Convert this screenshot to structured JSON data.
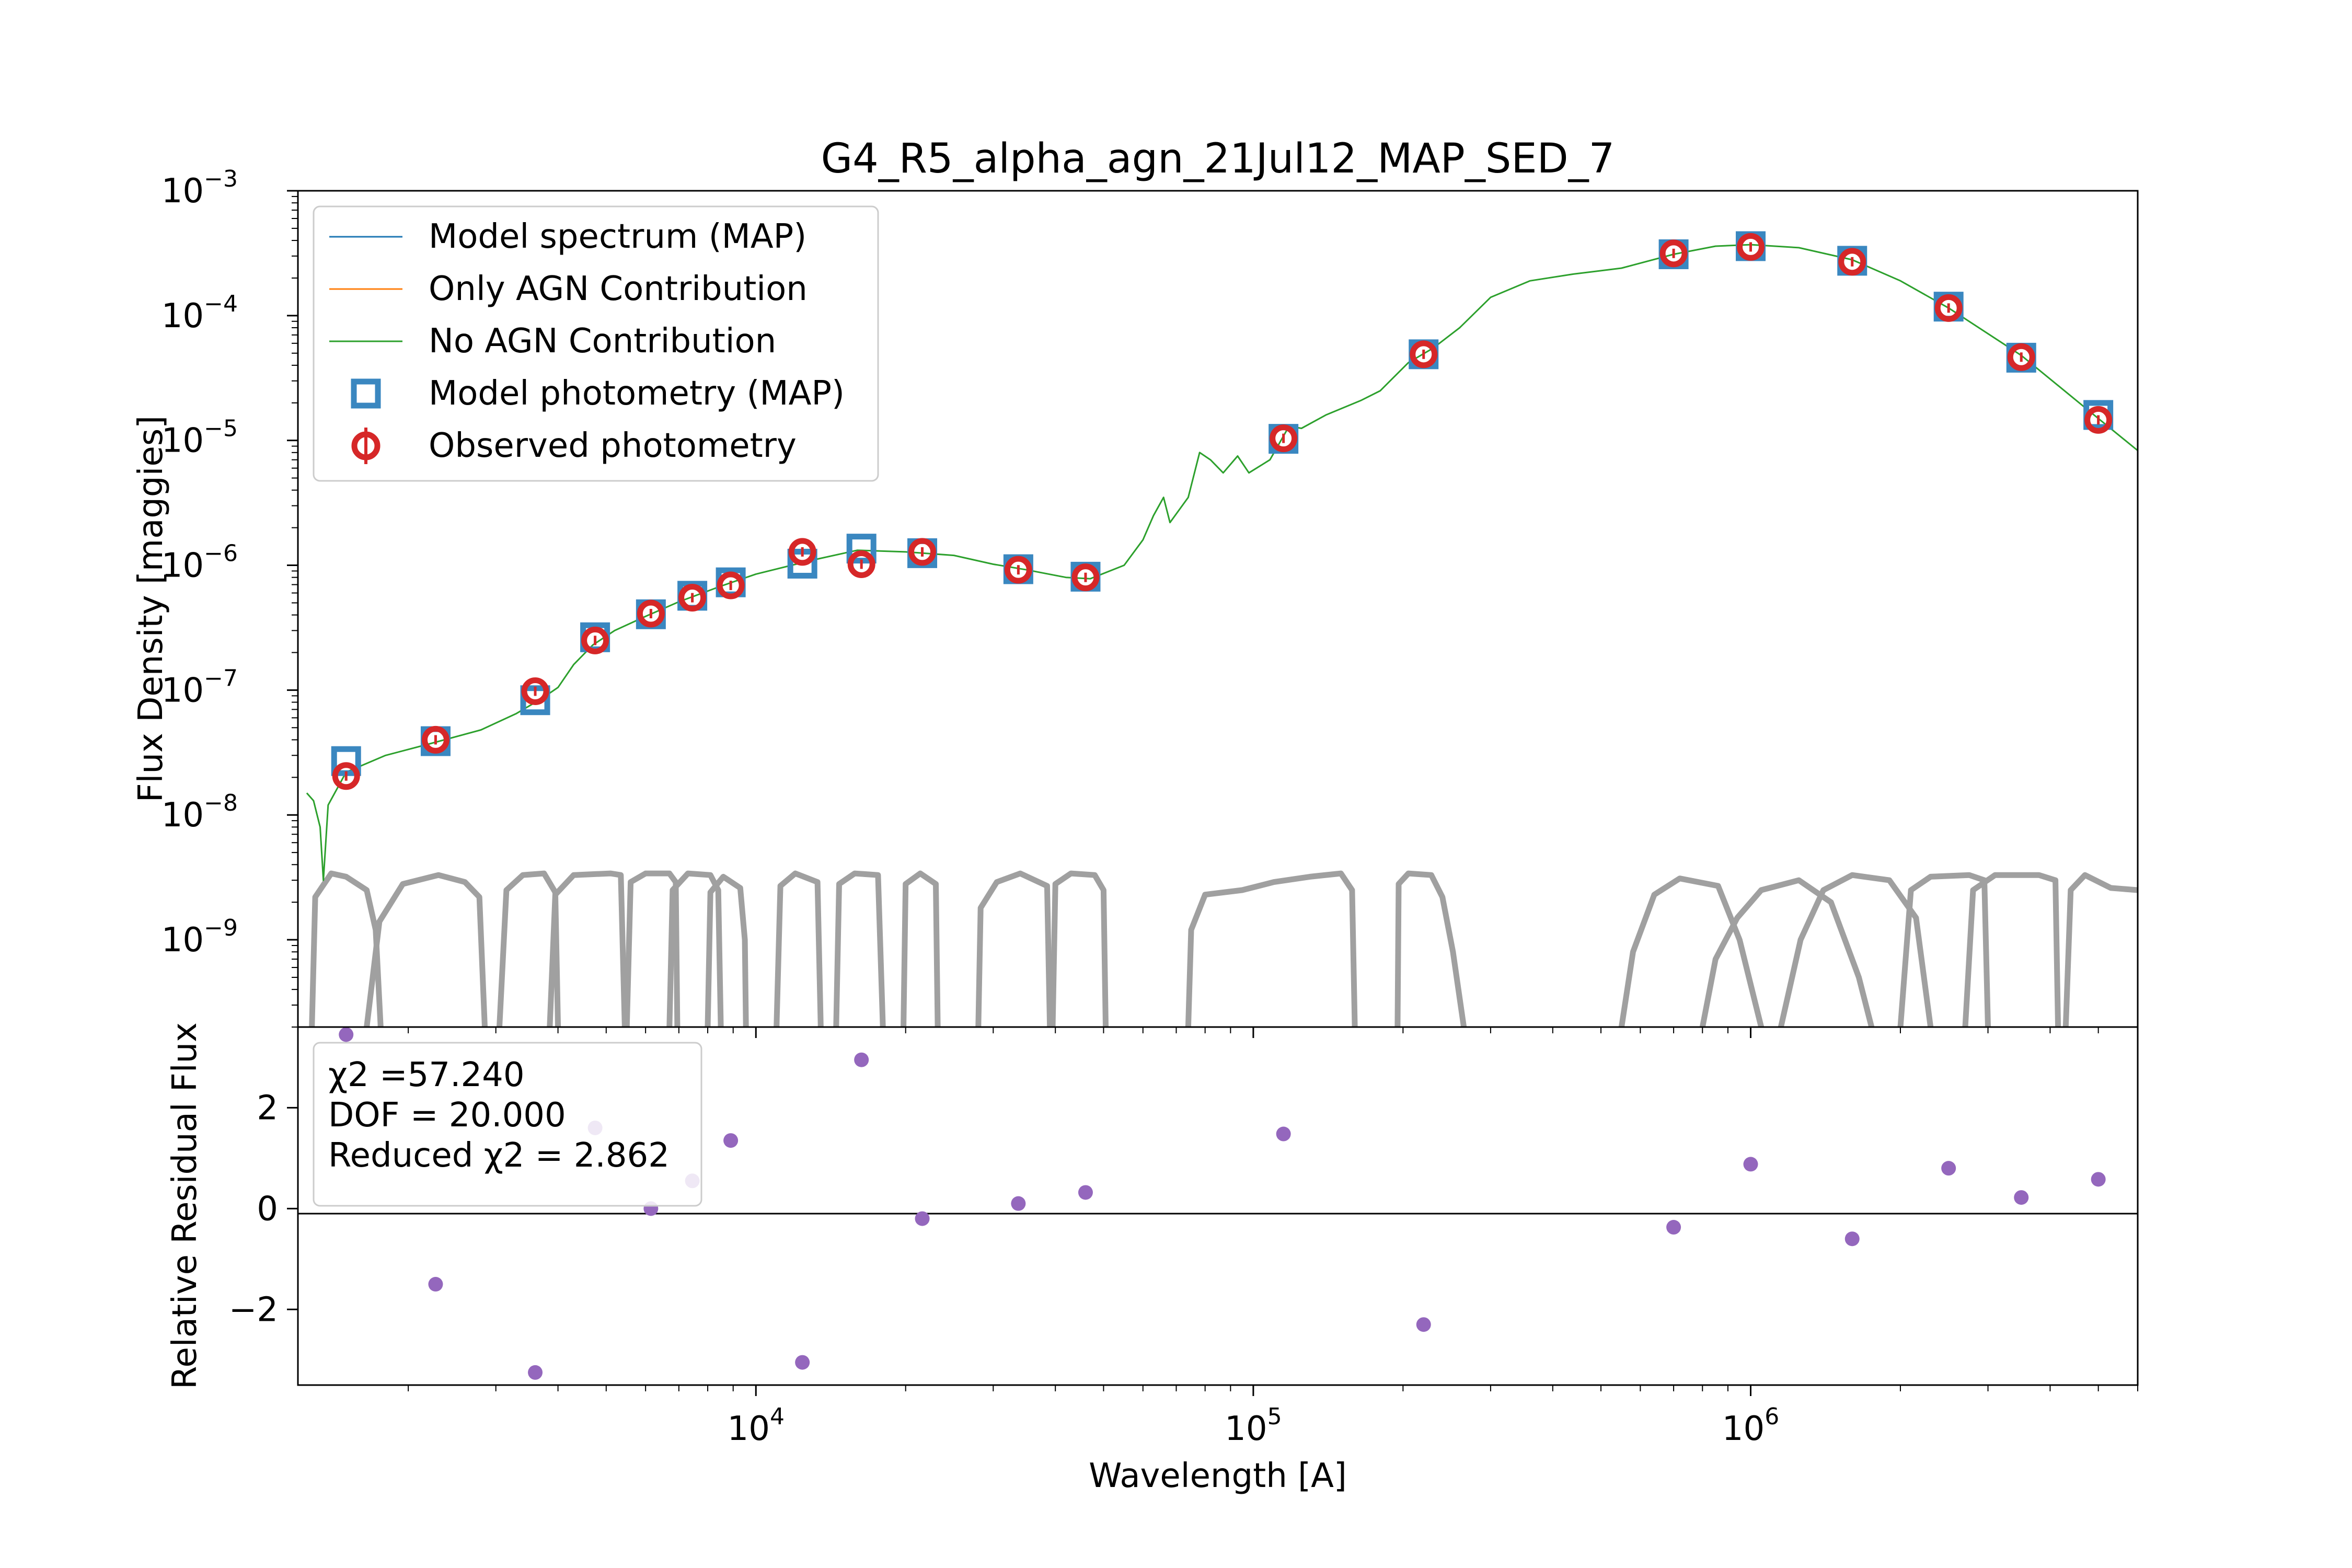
{
  "chart_data": {
    "type": "line",
    "title": "G4_R5_alpha_agn_21Jul12_MAP_SED_7",
    "xlabel": "Wavelength [A]",
    "ylabel_top": "Flux Density [maggies]",
    "ylabel_bottom": "Relative Residual Flux",
    "x_log": true,
    "y_log_top": true,
    "xlim": [
      1200,
      6000000
    ],
    "ylim_top": [
      2e-10,
      0.001
    ],
    "ylim_bottom": [
      -3.5,
      3.6
    ],
    "x_ticks": [
      {
        "base": "10",
        "exp": "4",
        "value": 10000
      },
      {
        "base": "10",
        "exp": "5",
        "value": 100000
      },
      {
        "base": "10",
        "exp": "6",
        "value": 1000000
      }
    ],
    "y_ticks_top": [
      {
        "base": "10",
        "exp": "−3",
        "value": 0.001
      },
      {
        "base": "10",
        "exp": "−4",
        "value": 0.0001
      },
      {
        "base": "10",
        "exp": "−5",
        "value": 1e-05
      },
      {
        "base": "10",
        "exp": "−6",
        "value": 1e-06
      },
      {
        "base": "10",
        "exp": "−7",
        "value": 1e-07
      },
      {
        "base": "10",
        "exp": "−8",
        "value": 1e-08
      },
      {
        "base": "10",
        "exp": "−9",
        "value": 1e-09
      }
    ],
    "y_ticks_bottom": [
      {
        "label": "2",
        "value": 2
      },
      {
        "label": "0",
        "value": 0
      },
      {
        "label": "−2",
        "value": -2
      }
    ],
    "legend": {
      "location": "upper-left",
      "entries": [
        {
          "label": "Model spectrum (MAP)",
          "marker": "line",
          "color": "#1f77b4"
        },
        {
          "label": "Only AGN Contribution",
          "marker": "line",
          "color": "#ff7f0e"
        },
        {
          "label": "No AGN Contribution",
          "marker": "line",
          "color": "#2ca02c"
        },
        {
          "label": "Model photometry (MAP)",
          "marker": "square",
          "color": "#3a87c0"
        },
        {
          "label": "Observed photometry",
          "marker": "circle-errorbar",
          "color": "#d62728"
        }
      ]
    },
    "stats_box": {
      "line1": "χ2 =57.240",
      "line2": "DOF = 20.000",
      "line3": "Reduced χ2 = 2.862"
    },
    "colors": {
      "model_photometry": "#3a87c0",
      "observed_photometry": "#d62728",
      "no_agn_spectrum": "#2ca02c",
      "filter_curves": "#a0a0a0",
      "residual_points": "#9467bd"
    },
    "model_spectrum_no_agn": [
      [
        1250,
        1.5e-08
      ],
      [
        1290,
        1.3e-08
      ],
      [
        1330,
        8e-09
      ],
      [
        1350,
        3e-09
      ],
      [
        1380,
        1.2e-08
      ],
      [
        1500,
        2.2e-08
      ],
      [
        1800,
        3e-08
      ],
      [
        2200,
        3.7e-08
      ],
      [
        2800,
        4.8e-08
      ],
      [
        3300,
        6.5e-08
      ],
      [
        3700,
        8.5e-08
      ],
      [
        4000,
        1.05e-07
      ],
      [
        4300,
        1.6e-07
      ],
      [
        4700,
        2.3e-07
      ],
      [
        5200,
        3e-07
      ],
      [
        6000,
        3.9e-07
      ],
      [
        7000,
        5.1e-07
      ],
      [
        8500,
        6.8e-07
      ],
      [
        10000,
        8.5e-07
      ],
      [
        13000,
        1.1e-06
      ],
      [
        16000,
        1.32e-06
      ],
      [
        20000,
        1.28e-06
      ],
      [
        25000,
        1.2e-06
      ],
      [
        30000,
        1.02e-06
      ],
      [
        35000,
        9.2e-07
      ],
      [
        42000,
        8e-07
      ],
      [
        47000,
        7.8e-07
      ],
      [
        55000,
        1e-06
      ],
      [
        60000,
        1.6e-06
      ],
      [
        63000,
        2.5e-06
      ],
      [
        66000,
        3.5e-06
      ],
      [
        68000,
        2.2e-06
      ],
      [
        74000,
        3.5e-06
      ],
      [
        78000,
        8e-06
      ],
      [
        82000,
        7e-06
      ],
      [
        87000,
        5.5e-06
      ],
      [
        93000,
        7.5e-06
      ],
      [
        98000,
        5.5e-06
      ],
      [
        108000,
        7e-06
      ],
      [
        118000,
        1.3e-05
      ],
      [
        125000,
        1.25e-05
      ],
      [
        140000,
        1.6e-05
      ],
      [
        165000,
        2.1e-05
      ],
      [
        180000,
        2.5e-05
      ],
      [
        205000,
        4.2e-05
      ],
      [
        230000,
        5.5e-05
      ],
      [
        260000,
        8e-05
      ],
      [
        300000,
        0.00014
      ],
      [
        360000,
        0.00019
      ],
      [
        440000,
        0.000215
      ],
      [
        550000,
        0.00024
      ],
      [
        700000,
        0.00031
      ],
      [
        850000,
        0.00036
      ],
      [
        1000000,
        0.00037
      ],
      [
        1250000,
        0.00035
      ],
      [
        1600000,
        0.00028
      ],
      [
        2000000,
        0.00019
      ],
      [
        2500000,
        0.000115
      ],
      [
        3500000,
        4.8e-05
      ],
      [
        5000000,
        1.5e-05
      ],
      [
        6000000,
        8.3e-06
      ]
    ],
    "observed_photometry": [
      {
        "x": 1500,
        "y": 2.05e-08
      },
      {
        "x": 2270,
        "y": 4e-08
      },
      {
        "x": 3600,
        "y": 9.8e-08
      },
      {
        "x": 4750,
        "y": 2.5e-07
      },
      {
        "x": 6150,
        "y": 4.1e-07
      },
      {
        "x": 7450,
        "y": 5.5e-07
      },
      {
        "x": 8900,
        "y": 6.9e-07
      },
      {
        "x": 12400,
        "y": 1.28e-06
      },
      {
        "x": 16300,
        "y": 1.02e-06
      },
      {
        "x": 21600,
        "y": 1.28e-06
      },
      {
        "x": 33700,
        "y": 9.2e-07
      },
      {
        "x": 46000,
        "y": 8e-07
      },
      {
        "x": 115000,
        "y": 1.04e-05
      },
      {
        "x": 220000,
        "y": 4.9e-05
      },
      {
        "x": 700000,
        "y": 0.000315
      },
      {
        "x": 1000000,
        "y": 0.000355
      },
      {
        "x": 1600000,
        "y": 0.00027
      },
      {
        "x": 2500000,
        "y": 0.000115
      },
      {
        "x": 3500000,
        "y": 4.65e-05
      },
      {
        "x": 5000000,
        "y": 1.46e-05
      }
    ],
    "model_photometry": [
      {
        "x": 1500,
        "y": 2.7e-08
      },
      {
        "x": 2270,
        "y": 3.9e-08
      },
      {
        "x": 3600,
        "y": 8.3e-08
      },
      {
        "x": 4750,
        "y": 2.65e-07
      },
      {
        "x": 6150,
        "y": 4.05e-07
      },
      {
        "x": 7450,
        "y": 5.7e-07
      },
      {
        "x": 8900,
        "y": 7.3e-07
      },
      {
        "x": 12400,
        "y": 1.03e-06
      },
      {
        "x": 16300,
        "y": 1.36e-06
      },
      {
        "x": 21600,
        "y": 1.25e-06
      },
      {
        "x": 33700,
        "y": 9.3e-07
      },
      {
        "x": 46000,
        "y": 8.1e-07
      },
      {
        "x": 115000,
        "y": 1.03e-05
      },
      {
        "x": 220000,
        "y": 4.9e-05
      },
      {
        "x": 700000,
        "y": 0.00031
      },
      {
        "x": 1000000,
        "y": 0.00036
      },
      {
        "x": 1600000,
        "y": 0.000275
      },
      {
        "x": 2500000,
        "y": 0.000118
      },
      {
        "x": 3500000,
        "y": 4.6e-05
      },
      {
        "x": 5000000,
        "y": 1.6e-05
      }
    ],
    "residuals": [
      {
        "x": 1500,
        "y": 3.45
      },
      {
        "x": 2270,
        "y": -1.5
      },
      {
        "x": 3600,
        "y": -3.25
      },
      {
        "x": 4750,
        "y": 1.6
      },
      {
        "x": 6150,
        "y": 0.0
      },
      {
        "x": 7450,
        "y": 0.55
      },
      {
        "x": 8900,
        "y": 1.35
      },
      {
        "x": 12400,
        "y": -3.05
      },
      {
        "x": 16300,
        "y": 2.95
      },
      {
        "x": 21600,
        "y": -0.2
      },
      {
        "x": 33700,
        "y": 0.1
      },
      {
        "x": 46000,
        "y": 0.32
      },
      {
        "x": 115000,
        "y": 1.48
      },
      {
        "x": 220000,
        "y": -2.3
      },
      {
        "x": 700000,
        "y": -0.37
      },
      {
        "x": 1000000,
        "y": 0.88
      },
      {
        "x": 1600000,
        "y": -0.6
      },
      {
        "x": 2500000,
        "y": 0.8
      },
      {
        "x": 3500000,
        "y": 0.22
      },
      {
        "x": 5000000,
        "y": 0.58
      }
    ],
    "filter_curves": [
      [
        [
          1280,
          2e-10
        ],
        [
          1300,
          2.2e-09
        ],
        [
          1400,
          3.4e-09
        ],
        [
          1500,
          3.2e-09
        ],
        [
          1650,
          2.5e-09
        ],
        [
          1720,
          1.2e-09
        ],
        [
          1760,
          2e-10
        ]
      ],
      [
        [
          1650,
          2e-10
        ],
        [
          1750,
          1.4e-09
        ],
        [
          1950,
          2.8e-09
        ],
        [
          2300,
          3.3e-09
        ],
        [
          2600,
          2.9e-09
        ],
        [
          2780,
          2.2e-09
        ],
        [
          2850,
          2e-10
        ]
      ],
      [
        [
          3050,
          2e-10
        ],
        [
          3150,
          2.5e-09
        ],
        [
          3400,
          3.3e-09
        ],
        [
          3750,
          3.4e-09
        ],
        [
          3950,
          2.4e-09
        ],
        [
          4000,
          2e-10
        ]
      ],
      [
        [
          3850,
          2e-10
        ],
        [
          3950,
          2.3e-09
        ],
        [
          4300,
          3.3e-09
        ],
        [
          5100,
          3.4e-09
        ],
        [
          5350,
          3.3e-09
        ],
        [
          5450,
          2e-10
        ]
      ],
      [
        [
          5500,
          2e-10
        ],
        [
          5600,
          2.9e-09
        ],
        [
          6000,
          3.4e-09
        ],
        [
          6700,
          3.4e-09
        ],
        [
          6900,
          2.9e-09
        ],
        [
          6950,
          2e-10
        ]
      ],
      [
        [
          6700,
          2e-10
        ],
        [
          6800,
          2.5e-09
        ],
        [
          7300,
          3.4e-09
        ],
        [
          8100,
          3.3e-09
        ],
        [
          8400,
          2.5e-09
        ],
        [
          8500,
          2e-10
        ]
      ],
      [
        [
          8000,
          2e-10
        ],
        [
          8100,
          2.4e-09
        ],
        [
          8600,
          3.2e-09
        ],
        [
          9300,
          2.6e-09
        ],
        [
          9500,
          1e-09
        ],
        [
          9550,
          2e-10
        ]
      ],
      [
        [
          11000,
          2e-10
        ],
        [
          11200,
          2.7e-09
        ],
        [
          12000,
          3.4e-09
        ],
        [
          13300,
          2.9e-09
        ],
        [
          13500,
          2e-10
        ]
      ],
      [
        [
          14500,
          2e-10
        ],
        [
          14700,
          2.8e-09
        ],
        [
          15800,
          3.4e-09
        ],
        [
          17600,
          3.3e-09
        ],
        [
          18000,
          2e-10
        ]
      ],
      [
        [
          19800,
          2e-10
        ],
        [
          20000,
          2.8e-09
        ],
        [
          21400,
          3.4e-09
        ],
        [
          23000,
          2.8e-09
        ],
        [
          23200,
          2e-10
        ]
      ],
      [
        [
          28000,
          2e-10
        ],
        [
          28300,
          1.8e-09
        ],
        [
          30500,
          2.9e-09
        ],
        [
          34000,
          3.4e-09
        ],
        [
          38500,
          2.7e-09
        ],
        [
          39000,
          2e-10
        ]
      ],
      [
        [
          39500,
          2e-10
        ],
        [
          40000,
          2.8e-09
        ],
        [
          43000,
          3.4e-09
        ],
        [
          48000,
          3.3e-09
        ],
        [
          50000,
          2.5e-09
        ],
        [
          50500,
          2e-10
        ]
      ],
      [
        [
          74000,
          2e-10
        ],
        [
          75000,
          1.2e-09
        ],
        [
          80000,
          2.3e-09
        ],
        [
          95000,
          2.5e-09
        ],
        [
          110000,
          2.9e-09
        ],
        [
          130000,
          3.2e-09
        ],
        [
          150000,
          3.4e-09
        ],
        [
          158000,
          2.5e-09
        ],
        [
          160000,
          2e-10
        ]
      ],
      [
        [
          195000,
          2e-10
        ],
        [
          196000,
          2.8e-09
        ],
        [
          205000,
          3.4e-09
        ],
        [
          228000,
          3.3e-09
        ],
        [
          240000,
          2.2e-09
        ],
        [
          252000,
          8e-10
        ],
        [
          265000,
          2e-10
        ]
      ],
      [
        [
          550000,
          2e-10
        ],
        [
          580000,
          8e-10
        ],
        [
          640000,
          2.3e-09
        ],
        [
          720000,
          3.1e-09
        ],
        [
          860000,
          2.7e-09
        ],
        [
          950000,
          1e-09
        ],
        [
          1050000,
          2e-10
        ]
      ],
      [
        [
          800000,
          2e-10
        ],
        [
          850000,
          7e-10
        ],
        [
          940000,
          1.5e-09
        ],
        [
          1050000,
          2.5e-09
        ],
        [
          1250000,
          3e-09
        ],
        [
          1450000,
          2e-09
        ],
        [
          1650000,
          5e-10
        ],
        [
          1750000,
          2e-10
        ]
      ],
      [
        [
          1150000,
          2e-10
        ],
        [
          1260000,
          1e-09
        ],
        [
          1400000,
          2.5e-09
        ],
        [
          1600000,
          3.3e-09
        ],
        [
          1900000,
          3e-09
        ],
        [
          2150000,
          1.5e-09
        ],
        [
          2300000,
          2e-10
        ]
      ],
      [
        [
          2000000,
          2e-10
        ],
        [
          2100000,
          2.5e-09
        ],
        [
          2300000,
          3.2e-09
        ],
        [
          2750000,
          3.3e-09
        ],
        [
          2950000,
          3e-09
        ],
        [
          3000000,
          2e-10
        ]
      ],
      [
        [
          2700000,
          2e-10
        ],
        [
          2800000,
          2.5e-09
        ],
        [
          3100000,
          3.3e-09
        ],
        [
          3800000,
          3.3e-09
        ],
        [
          4100000,
          3e-09
        ],
        [
          4150000,
          2e-10
        ]
      ],
      [
        [
          4300000,
          2e-10
        ],
        [
          4400000,
          2.5e-09
        ],
        [
          4700000,
          3.3e-09
        ],
        [
          5300000,
          2.6e-09
        ],
        [
          6000000,
          2.5e-09
        ]
      ]
    ]
  }
}
